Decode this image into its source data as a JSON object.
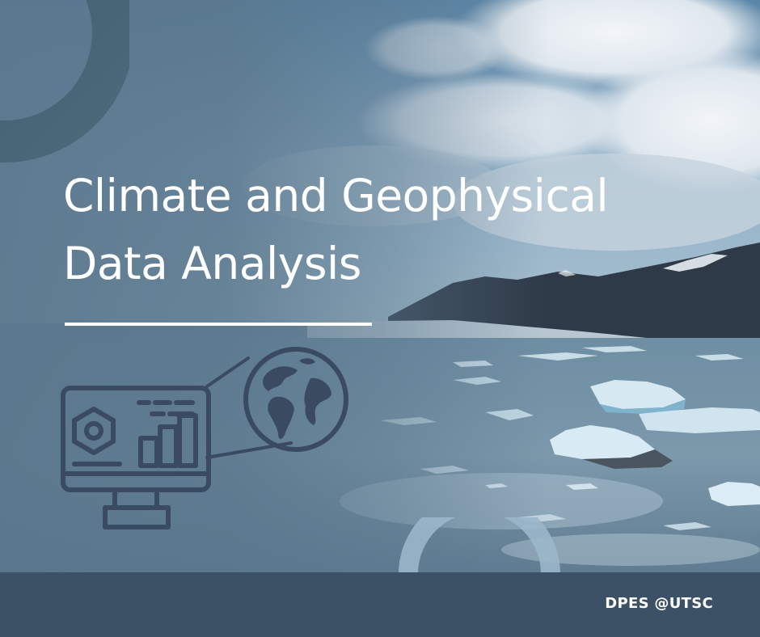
{
  "title": {
    "line1": "Climate and Geophysical",
    "line2": "Data Analysis"
  },
  "footer": {
    "credit": "DPES @UTSC"
  },
  "illustration": {
    "monitor_icon": "monitor-dashboard-icon",
    "globe_icon": "globe-icon",
    "hexagon_icon": "hexagon-nut-icon",
    "bar_chart_icon": "bar-chart-icon"
  },
  "colors": {
    "overlay_blue": "#59768c",
    "icon_navy": "#3a4a61",
    "footer_navy": "#3d5166",
    "text_white": "#ffffff"
  }
}
